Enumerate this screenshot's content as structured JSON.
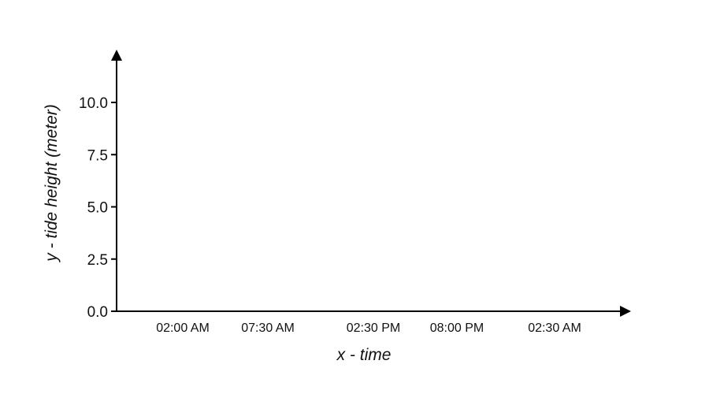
{
  "chart_data": {
    "type": "line",
    "title": "",
    "xlabel": "x - time",
    "ylabel": "y - tide height (meter)",
    "x_ticks": [
      "02:00 AM",
      "07:30 AM",
      "02:30 PM",
      "08:00 PM",
      "02:30 AM"
    ],
    "y_ticks": [
      "0.0",
      "2.5",
      "5.0",
      "7.5",
      "10.0"
    ],
    "y_tick_values": [
      0,
      2.5,
      5,
      7.5,
      10
    ],
    "ylim": [
      0,
      10
    ],
    "series": [],
    "grid": false,
    "colors": {
      "axis": "#000000",
      "text": "#111111"
    }
  }
}
